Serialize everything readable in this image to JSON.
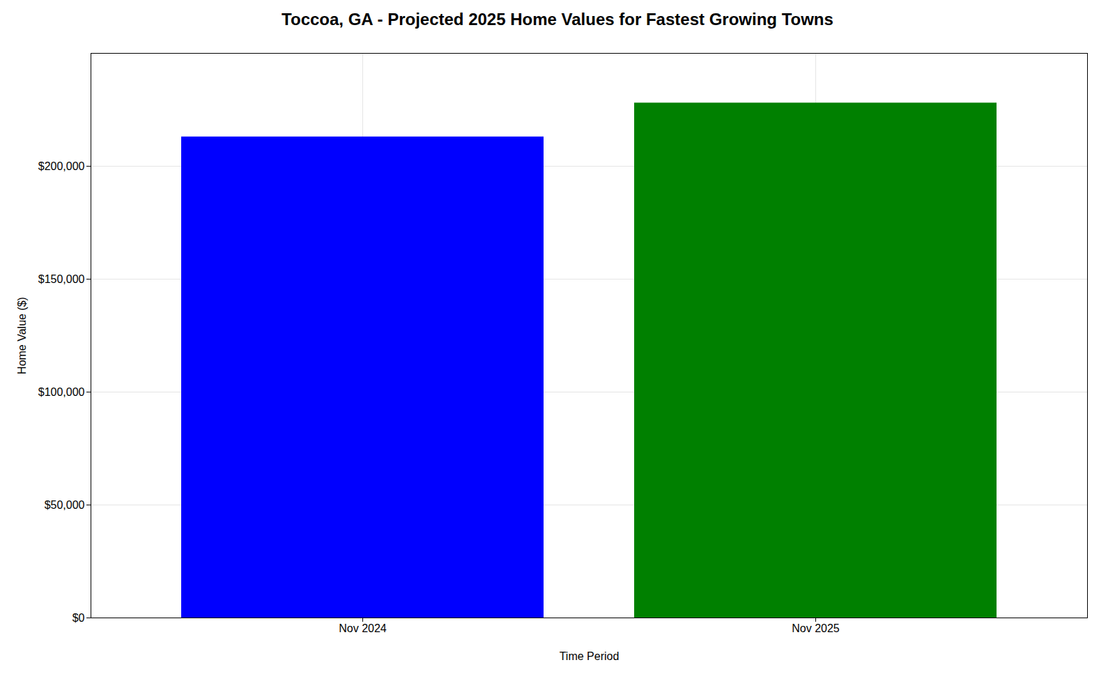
{
  "chart_data": {
    "type": "bar",
    "title": "Toccoa, GA - Projected 2025 Home Values for Fastest Growing Towns",
    "xlabel": "Time Period",
    "ylabel": "Home Value ($)",
    "categories": [
      "Nov 2024",
      "Nov 2025"
    ],
    "values": [
      213000,
      228000
    ],
    "colors": [
      "#0000ff",
      "#008000"
    ],
    "ylim": [
      0,
      250000
    ],
    "yticks": [
      {
        "value": 0,
        "label": "$0"
      },
      {
        "value": 50000,
        "label": "$50,000"
      },
      {
        "value": 100000,
        "label": "$100,000"
      },
      {
        "value": 150000,
        "label": "$150,000"
      },
      {
        "value": 200000,
        "label": "$200,000"
      }
    ],
    "grid": true
  }
}
